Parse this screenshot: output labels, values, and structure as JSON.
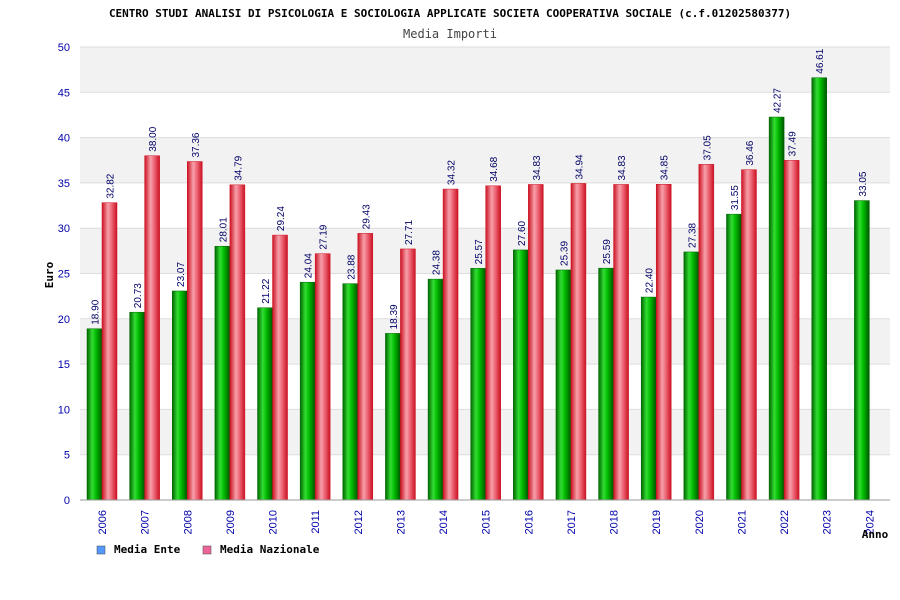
{
  "chart_data": {
    "type": "bar",
    "title": "CENTRO STUDI ANALISI DI PSICOLOGIA E SOCIOLOGIA APPLICATE SOCIETA COOPERATIVA SOCIALE (c.f.01202580377)",
    "subtitle": "Media Importi",
    "xlabel": "Anno",
    "ylabel": "Euro",
    "ylim": [
      0,
      50
    ],
    "yticks": [
      "0",
      "5",
      "10",
      "15",
      "20",
      "25",
      "30",
      "35",
      "40",
      "45",
      "50"
    ],
    "grid": true,
    "legend_position": "bottom-left",
    "categories": [
      "2006",
      "2007",
      "2008",
      "2009",
      "2010",
      "2011",
      "2012",
      "2013",
      "2014",
      "2015",
      "2016",
      "2017",
      "2018",
      "2019",
      "2020",
      "2021",
      "2022",
      "2023",
      "2024"
    ],
    "series": [
      {
        "name": "Media Ente",
        "color": "#00aa00",
        "legend_color": "#5599ff",
        "values": [
          18.9,
          20.73,
          23.07,
          28.01,
          21.22,
          24.04,
          23.88,
          18.39,
          24.38,
          25.57,
          27.6,
          25.39,
          25.59,
          22.4,
          27.38,
          31.55,
          42.27,
          46.61,
          33.05
        ],
        "labels": [
          "18.90",
          "20.73",
          "23.07",
          "28.01",
          "21.22",
          "24.04",
          "23.88",
          "18.39",
          "24.38",
          "25.57",
          "27.60",
          "25.39",
          "25.59",
          "22.40",
          "27.38",
          "31.55",
          "42.27",
          "46.61",
          "33.05"
        ]
      },
      {
        "name": "Media Nazionale",
        "color": "#ee2233",
        "legend_color": "#ee6699",
        "values": [
          32.82,
          38.0,
          37.36,
          34.79,
          29.24,
          27.19,
          29.43,
          27.71,
          34.32,
          34.68,
          34.83,
          34.94,
          34.83,
          34.85,
          37.05,
          36.46,
          37.49,
          null,
          null
        ],
        "labels": [
          "32.82",
          "38.00",
          "37.36",
          "34.79",
          "29.24",
          "27.19",
          "29.43",
          "27.71",
          "34.32",
          "34.68",
          "34.83",
          "34.94",
          "34.83",
          "34.85",
          "37.05",
          "36.46",
          "37.49",
          null,
          null
        ]
      }
    ]
  }
}
